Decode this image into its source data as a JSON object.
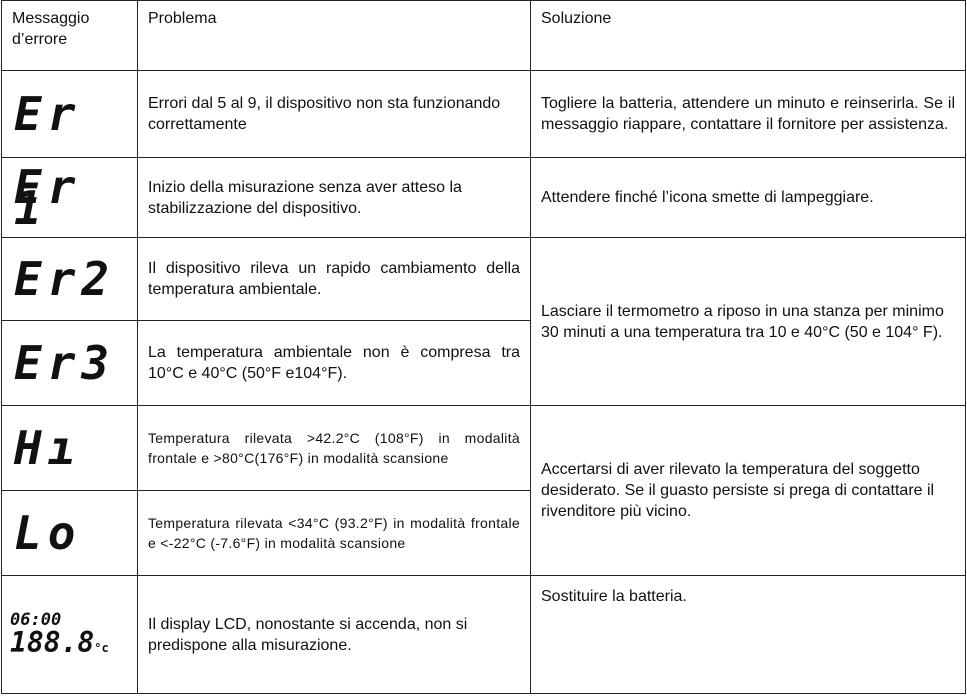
{
  "table": {
    "header": [
      "Messaggio d’errore",
      "Problema",
      "Soluzione"
    ],
    "rows": [
      {
        "code": "Er",
        "problem": "Errori dal 5 al 9, il dispositivo non sta funzionando correttamente",
        "solution": "Togliere la batteria, attendere un minuto e reinserirla. Se il messaggio riappare, contattare il fornitore per assistenza."
      },
      {
        "code": "Er 1",
        "problem": "Inizio della misurazione senza aver atteso la stabilizzazione del dispositivo.",
        "solution": "Attendere finché l’icona smette di lampeggiare."
      },
      {
        "code": "Er2",
        "problem": "Il dispositivo rileva un rapido cambiamento della temperatura ambientale.",
        "solution": "Lasciare il termometro a riposo in una stanza per minimo 30 minuti a una temperatura tra 10 e 40°C (50 e 104° F)."
      },
      {
        "code": "Er3",
        "problem": "La temperatura ambientale non è compresa tra 10°C e 40°C (50°F e104°F)."
      },
      {
        "code": "Hı",
        "problem": "Temperatura rilevata >42.2°C (108°F) in modalità frontale e >80°C(176°F) in modalità scansione",
        "solution": "Accertarsi di aver rilevato la temperatura del soggetto desiderato. Se il guasto persiste si prega di contattare il rivenditore più vicino."
      },
      {
        "code": "Lo",
        "problem": "Temperatura rilevata <34°C (93.2°F) in modalità frontale e <-22°C (-7.6°F) in modalità scansione"
      },
      {
        "lcd": {
          "time": "06:00",
          "digits": "188.8",
          "unit": "°c"
        },
        "problem": "Il display LCD, nonostante si accenda, non si predispone alla misurazione.",
        "solution": "Sostituire la batteria."
      }
    ]
  }
}
